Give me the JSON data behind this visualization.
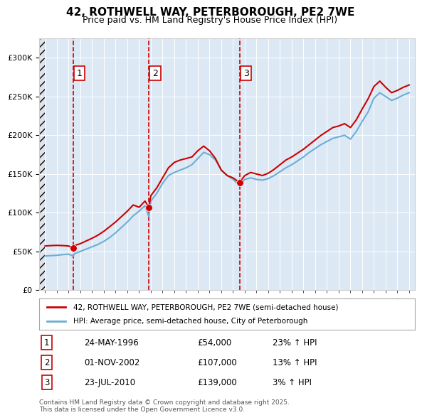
{
  "title": "42, ROTHWELL WAY, PETERBOROUGH, PE2 7WE",
  "subtitle": "Price paid vs. HM Land Registry's House Price Index (HPI)",
  "legend_line1": "42, ROTHWELL WAY, PETERBOROUGH, PE2 7WE (semi-detached house)",
  "legend_line2": "HPI: Average price, semi-detached house, City of Peterborough",
  "footnote": "Contains HM Land Registry data © Crown copyright and database right 2025.\nThis data is licensed under the Open Government Licence v3.0.",
  "sales": [
    {
      "num": 1,
      "date": "24-MAY-1996",
      "year": 1996.39,
      "price": 54000,
      "hpi_pct": "23% ↑ HPI"
    },
    {
      "num": 2,
      "date": "01-NOV-2002",
      "year": 2002.83,
      "price": 107000,
      "hpi_pct": "13% ↑ HPI"
    },
    {
      "num": 3,
      "date": "23-JUL-2010",
      "year": 2010.56,
      "price": 139000,
      "hpi_pct": "3% ↑ HPI"
    }
  ],
  "hpi_color": "#6baed6",
  "price_color": "#cc0000",
  "dashed_color": "#cc0000",
  "bg_color": "#dce9f5",
  "hatch_color": "#b0b8c8",
  "grid_color": "#ffffff",
  "ylim": [
    0,
    325000
  ],
  "xlim_start": 1993.5,
  "xlim_end": 2025.5,
  "hpi_data": {
    "years": [
      1994,
      1994.5,
      1995,
      1995.5,
      1996,
      1996.39,
      1996.5,
      1997,
      1997.5,
      1998,
      1998.5,
      1999,
      1999.5,
      2000,
      2000.5,
      2001,
      2001.5,
      2002,
      2002.5,
      2002.83,
      2003,
      2003.5,
      2004,
      2004.5,
      2005,
      2005.5,
      2006,
      2006.5,
      2007,
      2007.5,
      2008,
      2008.5,
      2009,
      2009.5,
      2010,
      2010.56,
      2011,
      2011.5,
      2012,
      2012.5,
      2013,
      2013.5,
      2014,
      2014.5,
      2015,
      2015.5,
      2016,
      2016.5,
      2017,
      2017.5,
      2018,
      2018.5,
      2019,
      2019.5,
      2020,
      2020.5,
      2021,
      2021.5,
      2022,
      2022.5,
      2023,
      2023.5,
      2024,
      2024.5,
      2025
    ],
    "values": [
      44000,
      44500,
      45000,
      45800,
      46500,
      43900,
      47200,
      50000,
      53000,
      56000,
      59000,
      63000,
      68000,
      74000,
      81000,
      88000,
      96000,
      102000,
      109000,
      94690,
      115000,
      125000,
      138000,
      148000,
      152000,
      155000,
      158000,
      162000,
      170000,
      178000,
      175000,
      168000,
      155000,
      148000,
      143000,
      135000,
      143000,
      145000,
      143000,
      142000,
      144000,
      148000,
      153000,
      158000,
      162000,
      167000,
      172000,
      178000,
      183000,
      188000,
      192000,
      196000,
      198000,
      200000,
      195000,
      205000,
      218000,
      230000,
      248000,
      255000,
      250000,
      245000,
      248000,
      252000,
      255000
    ]
  },
  "price_data": {
    "years": [
      1994,
      1994.5,
      1995,
      1995.5,
      1996,
      1996.39,
      1996.5,
      1997,
      1997.5,
      1998,
      1998.5,
      1999,
      1999.5,
      2000,
      2000.5,
      2001,
      2001.5,
      2002,
      2002.5,
      2002.83,
      2003,
      2003.5,
      2004,
      2004.5,
      2005,
      2005.5,
      2006,
      2006.5,
      2007,
      2007.5,
      2008,
      2008.5,
      2009,
      2009.5,
      2010,
      2010.56,
      2011,
      2011.5,
      2012,
      2012.5,
      2013,
      2013.5,
      2014,
      2014.5,
      2015,
      2015.5,
      2016,
      2016.5,
      2017,
      2017.5,
      2018,
      2018.5,
      2019,
      2019.5,
      2020,
      2020.5,
      2021,
      2021.5,
      2022,
      2022.5,
      2023,
      2023.5,
      2024,
      2024.5,
      2025
    ],
    "values": [
      57000,
      57500,
      57800,
      57500,
      57000,
      54000,
      57500,
      60000,
      63500,
      67000,
      71000,
      76000,
      82000,
      88000,
      95000,
      102000,
      110000,
      107000,
      115000,
      107000,
      122000,
      132000,
      145000,
      158000,
      165000,
      168000,
      170000,
      172000,
      180000,
      186000,
      180000,
      170000,
      155000,
      148000,
      145000,
      139000,
      148000,
      152000,
      150000,
      148000,
      151000,
      156000,
      162000,
      168000,
      172000,
      177000,
      182000,
      188000,
      194000,
      200000,
      205000,
      210000,
      212000,
      215000,
      210000,
      220000,
      234000,
      247000,
      263000,
      270000,
      262000,
      255000,
      258000,
      262000,
      265000
    ]
  }
}
